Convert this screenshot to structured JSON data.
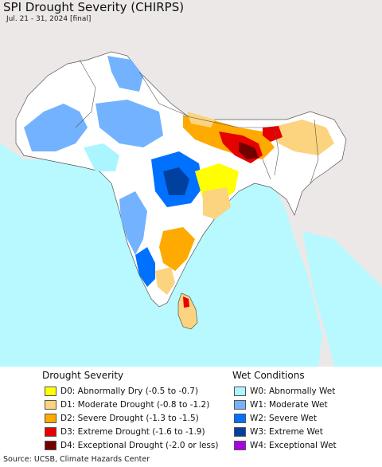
{
  "title": "SPI Drought Severity (CHIRPS)",
  "subtitle": "Jul. 21 - 31, 2024 [final]",
  "legend": {
    "drought_heading": "Drought Severity",
    "wet_heading": "Wet Conditions",
    "drought": [
      {
        "label": "D0: Abnormally Dry (-0.5 to -0.7)",
        "color": "#ffff00"
      },
      {
        "label": "D1: Moderate Drought (-0.8 to -1.2)",
        "color": "#fcd37f"
      },
      {
        "label": "D2: Severe Drought (-1.3 to -1.5)",
        "color": "#ffaa00"
      },
      {
        "label": "D3: Extreme Drought (-1.6 to -1.9)",
        "color": "#e60000"
      },
      {
        "label": "D4: Exceptional Drought (-2.0 or less)",
        "color": "#730000"
      }
    ],
    "wet": [
      {
        "label": "W0: Abnormally Wet",
        "color": "#aaf5ff"
      },
      {
        "label": "W1: Moderate Wet",
        "color": "#73b2ff"
      },
      {
        "label": "W2: Severe Wet",
        "color": "#0070ff"
      },
      {
        "label": "W3: Extreme Wet",
        "color": "#0041a0"
      },
      {
        "label": "W4: Exceptional Wet",
        "color": "#a900e6"
      }
    ]
  },
  "source": "Source: UCSB, Climate Hazards Center",
  "colors": {
    "ocean": "#b7f9ff",
    "land": "#ffffff",
    "outside": "#ede8e8"
  }
}
